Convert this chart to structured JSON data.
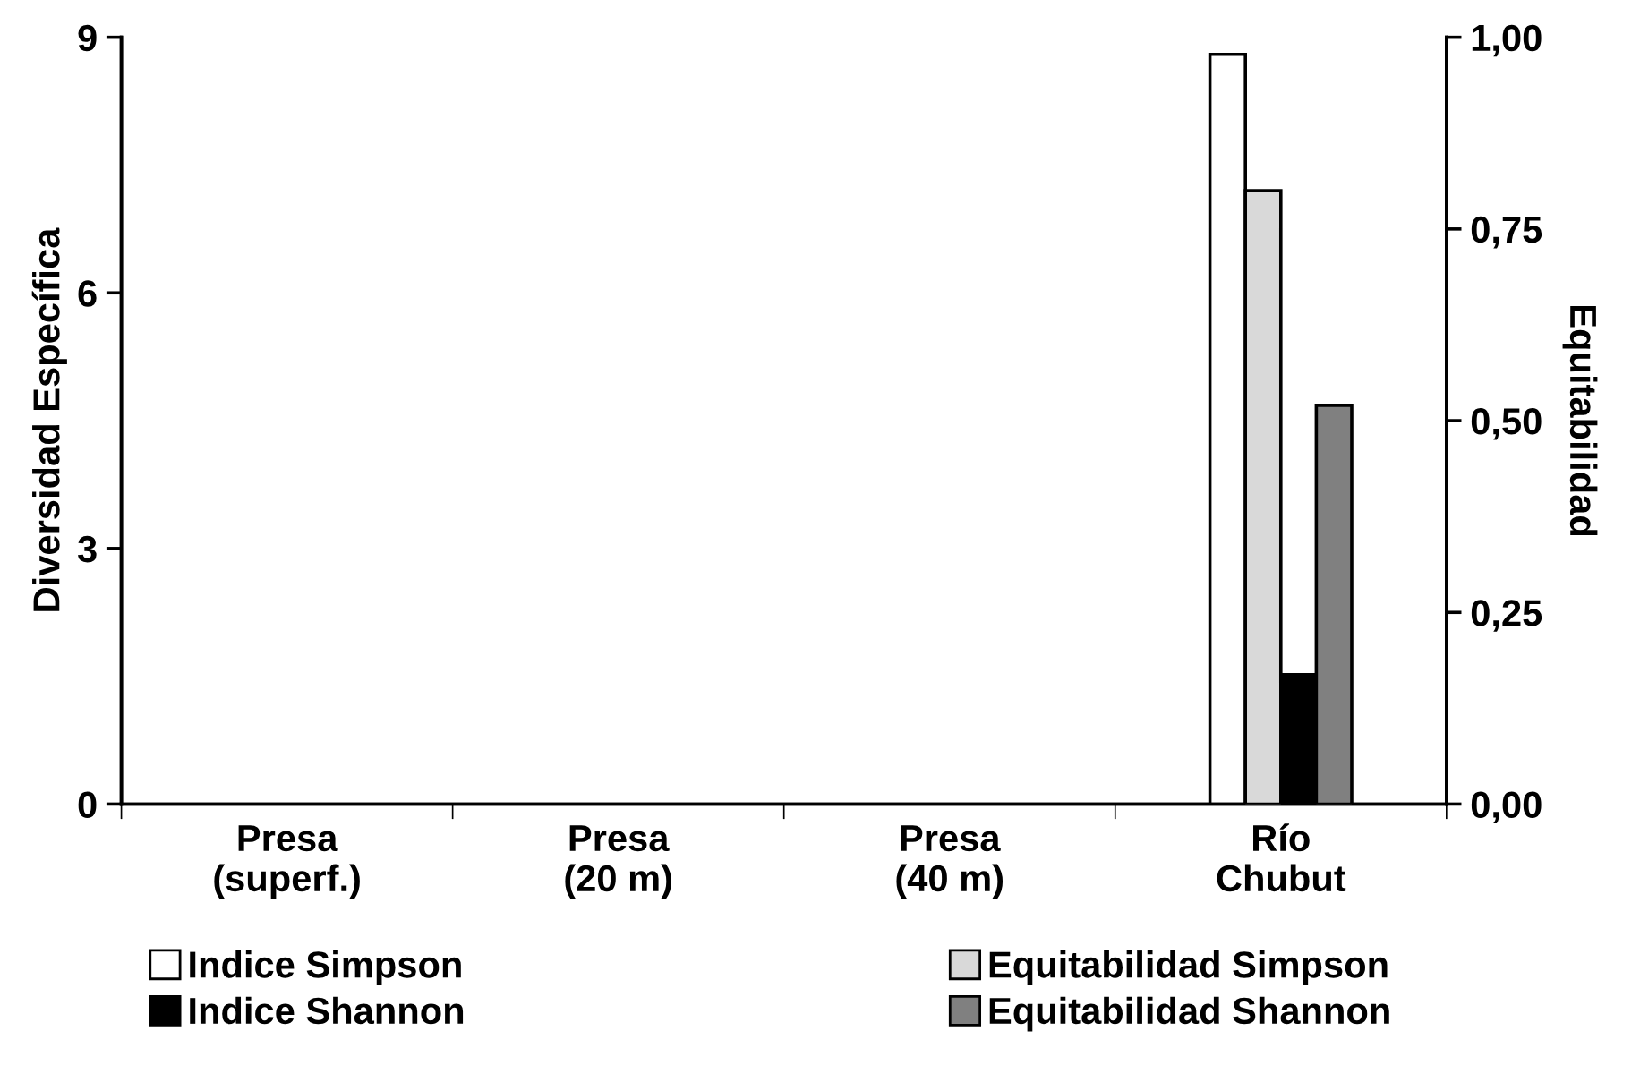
{
  "chart_data": {
    "type": "bar",
    "ylabel": "Diversidad Específica",
    "y2label": "Equitabilidad",
    "categories": [
      "Presa\n(superf.)",
      "Presa\n(20 m)",
      "Presa\n(40 m)",
      "Río\nChubut"
    ],
    "series": [
      {
        "name": "Indice Simpson",
        "color": "#ffffff",
        "values": [
          null,
          null,
          null,
          8.8
        ]
      },
      {
        "name": "Equitabilidad Simpson",
        "color": "#d9d9d9",
        "axis": "y2",
        "values": [
          null,
          null,
          null,
          0.8
        ]
      },
      {
        "name": "Indice Shannon",
        "color": "#000000",
        "values": [
          null,
          null,
          null,
          1.52
        ]
      },
      {
        "name": "Equitabilidad Shannon",
        "color": "#808080",
        "axis": "y2",
        "values": [
          null,
          null,
          null,
          0.52
        ]
      }
    ],
    "ylim": [
      0,
      9
    ],
    "yticks": [
      0,
      3,
      6,
      9
    ],
    "y2lim": [
      0,
      1
    ],
    "y2ticks": [
      {
        "value": 0,
        "label": "0,00"
      },
      {
        "value": 0.25,
        "label": "0,25"
      },
      {
        "value": 0.5,
        "label": "0,50"
      },
      {
        "value": 0.75,
        "label": "0,75"
      },
      {
        "value": 1,
        "label": "1,00"
      }
    ],
    "legend": "bottom",
    "grid": false
  }
}
